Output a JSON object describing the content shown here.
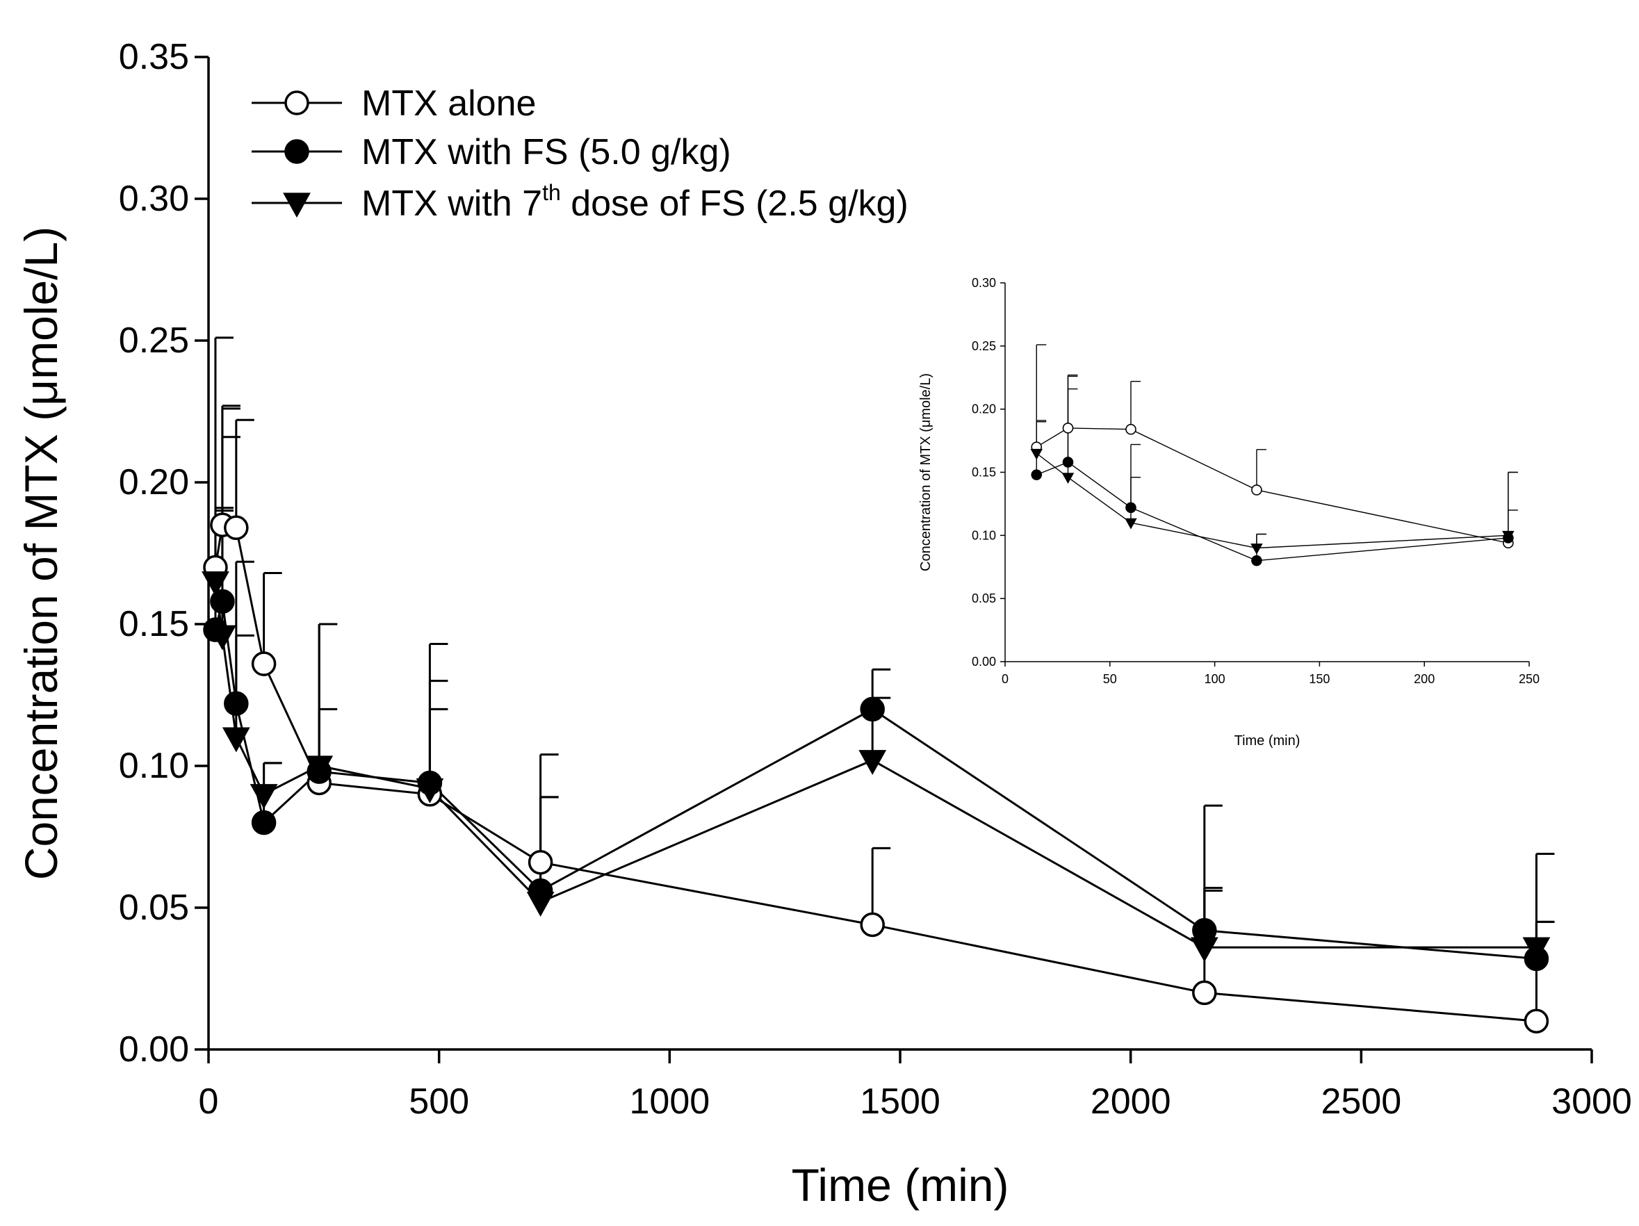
{
  "chart_data": [
    {
      "type": "line",
      "xlabel": "Time (min)",
      "ylabel": "Concentration of MTX (μmole/L)",
      "xlim": [
        0,
        3000
      ],
      "ylim": [
        0,
        0.35
      ],
      "xticks": [
        "0",
        "500",
        "1000",
        "1500",
        "2000",
        "2500",
        "3000"
      ],
      "yticks": [
        "0.00",
        "0.05",
        "0.10",
        "0.15",
        "0.20",
        "0.25",
        "0.30",
        "0.35"
      ],
      "legend_position": "top-left",
      "series": [
        {
          "name": "MTX alone",
          "marker": "open-circle",
          "x": [
            15,
            30,
            60,
            120,
            240,
            480,
            720,
            1440,
            2160,
            2880
          ],
          "y": [
            0.17,
            0.185,
            0.184,
            0.136,
            0.094,
            0.09,
            0.066,
            0.044,
            0.02,
            0.01
          ],
          "err": [
            0.081,
            0.042,
            0.038,
            0.032,
            0.056,
            0.053,
            0.038,
            0.027,
            0.066,
            0.059
          ]
        },
        {
          "name": "MTX with FS (5.0 g/kg)",
          "marker": "filled-circle",
          "x": [
            15,
            30,
            60,
            120,
            240,
            480,
            720,
            1440,
            2160,
            2880
          ],
          "y": [
            0.148,
            0.158,
            0.122,
            0.08,
            0.098,
            0.094,
            0.056,
            0.12,
            0.042,
            0.032
          ],
          "err": [
            0.042,
            0.068,
            0.05,
            0.021,
            0.052,
            0.036,
            0.033,
            0.014,
            0.015,
            0.013
          ]
        },
        {
          "name": "MTX with 7th dose of FS (2.5 g/kg)",
          "legend_parts": [
            "MTX with 7",
            "th",
            " dose of FS (2.5 g/kg)"
          ],
          "marker": "filled-triangle-down",
          "x": [
            15,
            30,
            60,
            120,
            240,
            480,
            720,
            1440,
            2160,
            2880
          ],
          "y": [
            0.165,
            0.146,
            0.11,
            0.09,
            0.1,
            0.092,
            0.052,
            0.102,
            0.036,
            0.036
          ],
          "err": [
            0.026,
            0.07,
            0.036,
            0.011,
            0.02,
            0.028,
            0.037,
            0.022,
            0.02,
            0.009
          ]
        }
      ]
    },
    {
      "type": "line",
      "inset": true,
      "xlabel": "Time (min)",
      "ylabel": "Concentration of MTX (μmole/L)",
      "xlim": [
        0,
        250
      ],
      "ylim": [
        0,
        0.3
      ],
      "xticks": [
        "0",
        "50",
        "100",
        "150",
        "200",
        "250"
      ],
      "yticks": [
        "0.00",
        "0.05",
        "0.10",
        "0.15",
        "0.20",
        "0.25",
        "0.30"
      ],
      "series": [
        {
          "name": "MTX alone",
          "marker": "open-circle",
          "x": [
            15,
            30,
            60,
            120,
            240
          ],
          "y": [
            0.17,
            0.185,
            0.184,
            0.136,
            0.094
          ],
          "err": [
            0.081,
            0.042,
            0.038,
            0.032,
            0.056
          ]
        },
        {
          "name": "MTX with FS (5.0 g/kg)",
          "marker": "filled-circle",
          "x": [
            15,
            30,
            60,
            120,
            240
          ],
          "y": [
            0.148,
            0.158,
            0.122,
            0.08,
            0.098
          ],
          "err": [
            0.042,
            0.068,
            0.05,
            0.021,
            0.052
          ]
        },
        {
          "name": "MTX with 7th dose of FS (2.5 g/kg)",
          "marker": "filled-triangle-down",
          "x": [
            15,
            30,
            60,
            120,
            240
          ],
          "y": [
            0.165,
            0.146,
            0.11,
            0.09,
            0.1
          ],
          "err": [
            0.026,
            0.07,
            0.036,
            0.011,
            0.02
          ]
        }
      ]
    }
  ]
}
